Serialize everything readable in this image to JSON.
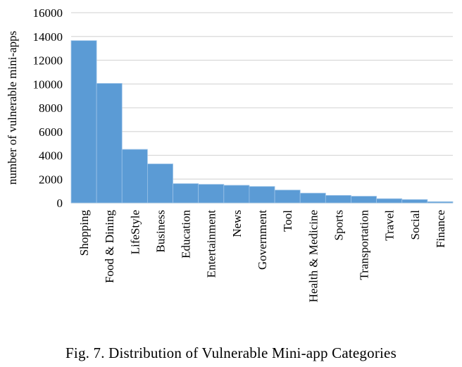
{
  "chart_data": {
    "type": "bar",
    "categories": [
      "Shopping",
      "Food & Dining",
      "LifeStyle",
      "Business",
      "Education",
      "Entertainment",
      "News",
      "Government",
      "Tool",
      "Health & Medicine",
      "Sports",
      "Transportation",
      "Travel",
      "Social",
      "Finance"
    ],
    "values": [
      13650,
      10050,
      4500,
      3280,
      1620,
      1560,
      1480,
      1380,
      1080,
      820,
      630,
      560,
      350,
      280,
      100
    ],
    "ylabel": "number of vulnerable mini-apps",
    "ylim": [
      0,
      16000
    ],
    "yticks": [
      "0",
      "2000",
      "4000",
      "6000",
      "8000",
      "10000",
      "12000",
      "14000",
      "16000"
    ],
    "grid": true,
    "bar_color": "#5b9bd5"
  },
  "caption": "Fig. 7.  Distribution of Vulnerable Mini-app Categories"
}
